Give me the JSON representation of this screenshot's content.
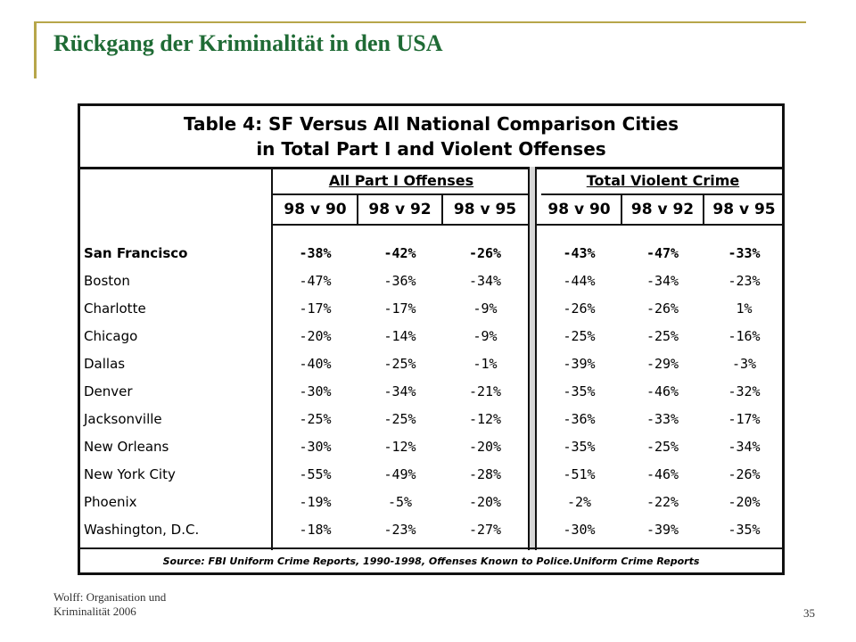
{
  "slide": {
    "title": "Rückgang der Kriminalität in den USA",
    "footer_line1": "Wolff: Organisation und",
    "footer_line2": "Kriminalität 2006",
    "page_number": "35"
  },
  "table": {
    "title_line1": "Table 4:  SF Versus All National Comparison Cities",
    "title_line2": "in Total Part I and Violent Offenses",
    "group1": "All Part I Offenses",
    "group2": "Total Violent Crime",
    "columns": [
      "98 v 90",
      "98 v 92",
      "98 v 95",
      "98 v 90",
      "98 v 92",
      "98 v 95"
    ],
    "rows": [
      {
        "city": "San Francisco",
        "values": [
          "-38%",
          "-42%",
          "-26%",
          "-43%",
          "-47%",
          "-33%"
        ]
      },
      {
        "city": "Boston",
        "values": [
          "-47%",
          "-36%",
          "-34%",
          "-44%",
          "-34%",
          "-23%"
        ]
      },
      {
        "city": "Charlotte",
        "values": [
          "-17%",
          "-17%",
          "-9%",
          "-26%",
          "-26%",
          "1%"
        ]
      },
      {
        "city": "Chicago",
        "values": [
          "-20%",
          "-14%",
          "-9%",
          "-25%",
          "-25%",
          "-16%"
        ]
      },
      {
        "city": "Dallas",
        "values": [
          "-40%",
          "-25%",
          "-1%",
          "-39%",
          "-29%",
          "-3%"
        ]
      },
      {
        "city": "Denver",
        "values": [
          "-30%",
          "-34%",
          "-21%",
          "-35%",
          "-46%",
          "-32%"
        ]
      },
      {
        "city": "Jacksonville",
        "values": [
          "-25%",
          "-25%",
          "-12%",
          "-36%",
          "-33%",
          "-17%"
        ]
      },
      {
        "city": "New Orleans",
        "values": [
          "-30%",
          "-12%",
          "-20%",
          "-35%",
          "-25%",
          "-34%"
        ]
      },
      {
        "city": "New York City",
        "values": [
          "-55%",
          "-49%",
          "-28%",
          "-51%",
          "-46%",
          "-26%"
        ]
      },
      {
        "city": "Phoenix",
        "values": [
          "-19%",
          "-5%",
          "-20%",
          "-2%",
          "-22%",
          "-20%"
        ]
      },
      {
        "city": "Washington, D.C.",
        "values": [
          "-18%",
          "-23%",
          "-27%",
          "-30%",
          "-39%",
          "-35%"
        ]
      }
    ],
    "source": "Source:  FBI Uniform Crime Reports, 1990-1998,  Offenses Known to Police.Uniform Crime Reports"
  }
}
